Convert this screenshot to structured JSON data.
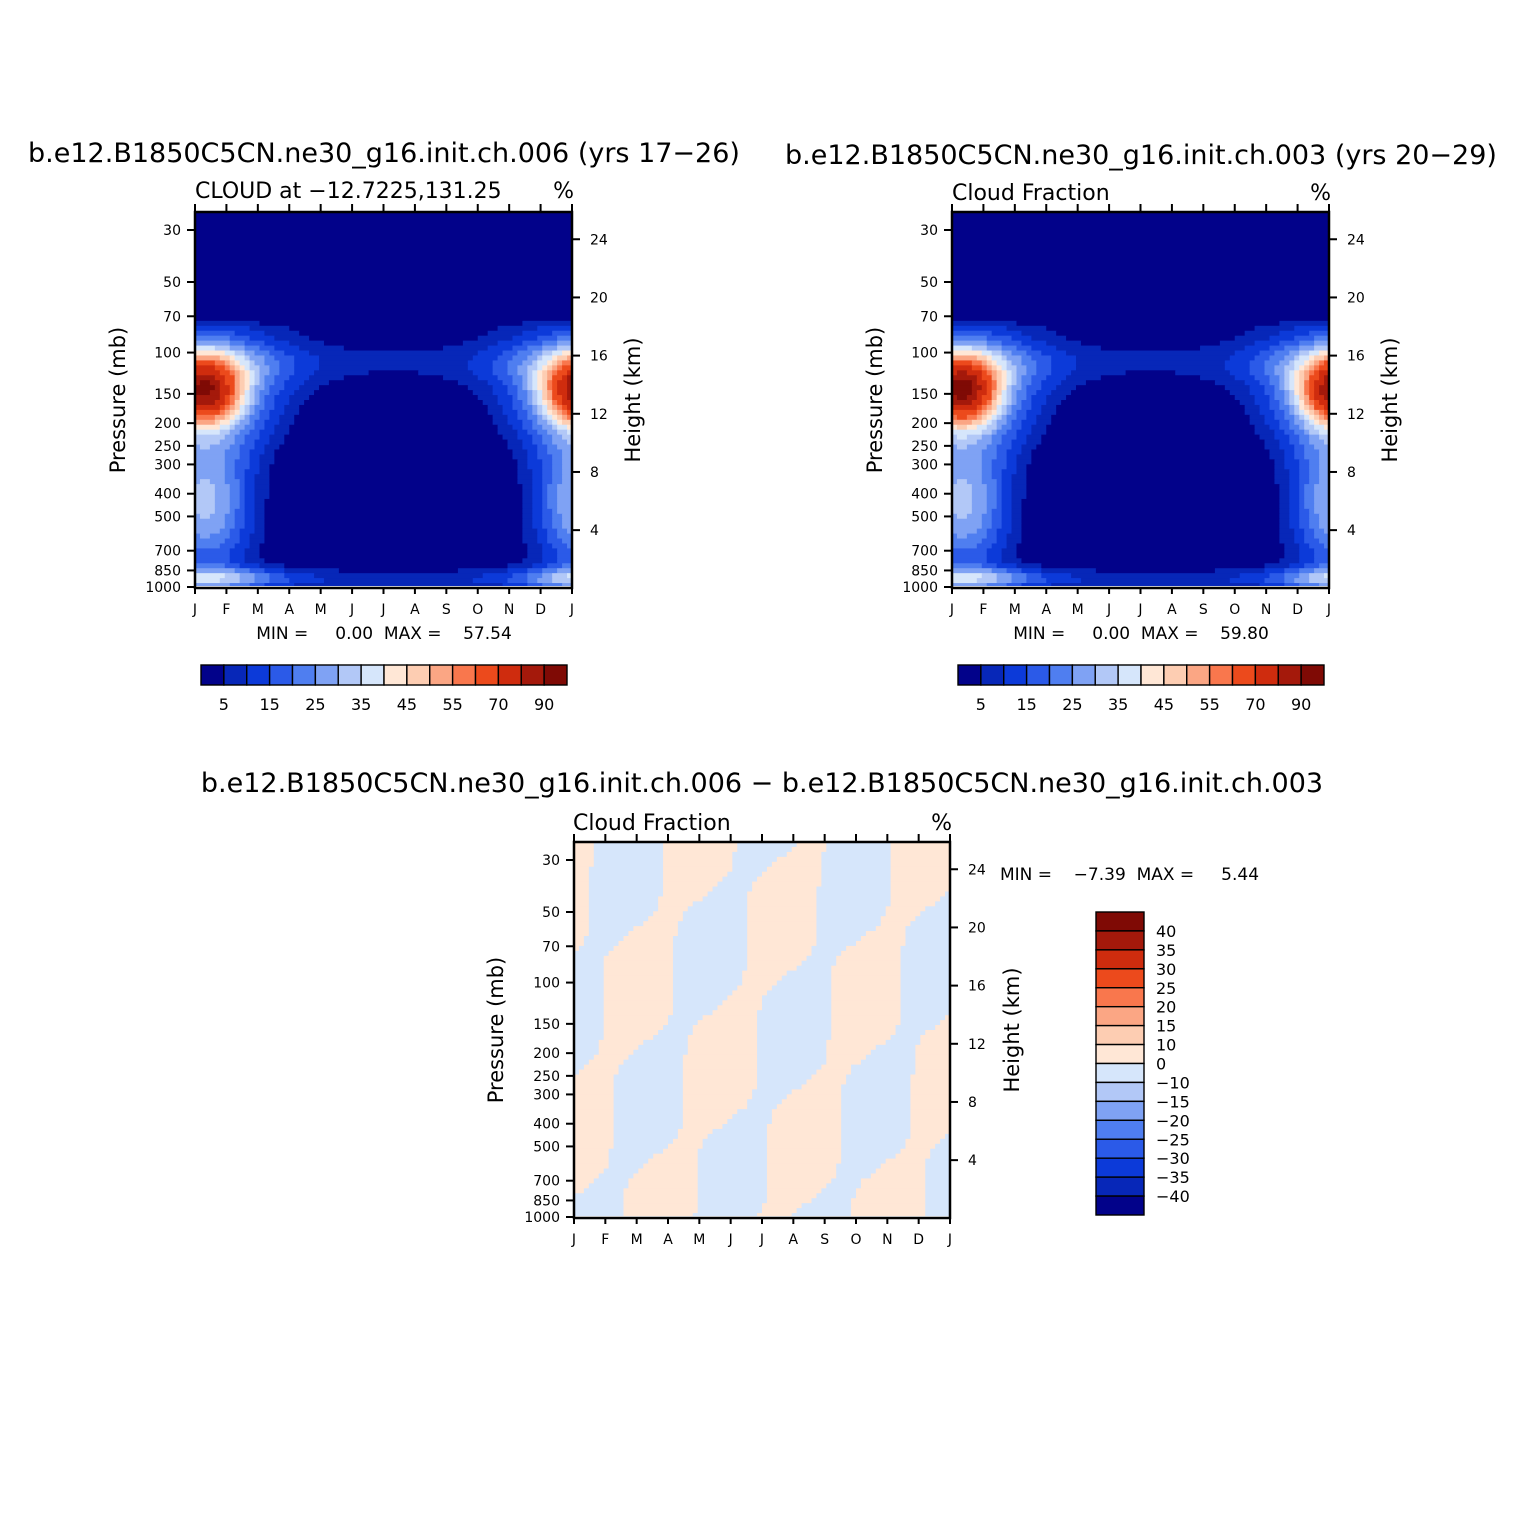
{
  "colors": {
    "seq": [
      "#02028a",
      "#0727b8",
      "#0c3ad9",
      "#2b5ae8",
      "#4f7ef0",
      "#7fa2f4",
      "#b2c8f7",
      "#d6e6fb",
      "#ffe7d6",
      "#fdcdb2",
      "#fba684",
      "#f9774d",
      "#ec4a1c",
      "#cf2c0e",
      "#a4190b",
      "#7f0a05"
    ],
    "diff_pos": "#ffe7d6",
    "diff_neg": "#d6e6fb",
    "diff_cbar": [
      "#02028a",
      "#0727b8",
      "#0c3ad9",
      "#2b5ae8",
      "#4f7ef0",
      "#7fa2f4",
      "#b2c8f7",
      "#d6e6fb",
      "#ffe7d6",
      "#fdcdb2",
      "#fba684",
      "#f9774d",
      "#ec4a1c",
      "#cf2c0e",
      "#a4190b",
      "#7f0a05"
    ]
  },
  "chart_data": [
    {
      "type": "heatmap",
      "id": "case_a",
      "title": "b.e12.B1850C5CN.ne30_g16.init.ch.006 (yrs 17−26)",
      "subtitle_left": "CLOUD at −12.7225,131.25",
      "subtitle_right": "%",
      "x": [
        "J",
        "F",
        "M",
        "A",
        "M",
        "J",
        "J",
        "A",
        "S",
        "O",
        "N",
        "D",
        "J"
      ],
      "ylabel": "Pressure (mb)",
      "yticks": [
        "30",
        "50",
        "70",
        "100",
        "150",
        "200",
        "250",
        "300",
        "400",
        "500",
        "700",
        "850",
        "1000"
      ],
      "y2label": "Height (km)",
      "y2ticks": [
        "24",
        "20",
        "16",
        "12",
        "8",
        "4"
      ],
      "stats_text": "MIN =     0.00  MAX =    57.54",
      "stats": {
        "min": 0.0,
        "max": 57.54
      },
      "colorbar_labels": [
        "5",
        "15",
        "25",
        "35",
        "45",
        "55",
        "70",
        "90"
      ],
      "zlim": [
        0,
        100
      ],
      "feature": {
        "peak": 57.54,
        "peak_month": 0.3,
        "peak_pressure": 170
      }
    },
    {
      "type": "heatmap",
      "id": "case_b",
      "title": "b.e12.B1850C5CN.ne30_g16.init.ch.003 (yrs 20−29)",
      "subtitle_left": "Cloud Fraction",
      "subtitle_right": "%",
      "x": [
        "J",
        "F",
        "M",
        "A",
        "M",
        "J",
        "J",
        "A",
        "S",
        "O",
        "N",
        "D",
        "J"
      ],
      "ylabel": "Pressure (mb)",
      "yticks": [
        "30",
        "50",
        "70",
        "100",
        "150",
        "200",
        "250",
        "300",
        "400",
        "500",
        "700",
        "850",
        "1000"
      ],
      "y2label": "Height (km)",
      "y2ticks": [
        "24",
        "20",
        "16",
        "12",
        "8",
        "4"
      ],
      "stats_text": "MIN =     0.00  MAX =    59.80",
      "stats": {
        "min": 0.0,
        "max": 59.8
      },
      "colorbar_labels": [
        "5",
        "15",
        "25",
        "35",
        "45",
        "55",
        "70",
        "90"
      ],
      "zlim": [
        0,
        100
      ],
      "feature": {
        "peak": 59.8,
        "peak_month": 0.3,
        "peak_pressure": 170
      }
    },
    {
      "type": "heatmap",
      "id": "diff",
      "title": "b.e12.B1850C5CN.ne30_g16.init.ch.006 − b.e12.B1850C5CN.ne30_g16.init.ch.003",
      "subtitle_left": "Cloud Fraction",
      "subtitle_right": "%",
      "x": [
        "J",
        "F",
        "M",
        "A",
        "M",
        "J",
        "J",
        "A",
        "S",
        "O",
        "N",
        "D",
        "J"
      ],
      "ylabel": "Pressure (mb)",
      "yticks": [
        "30",
        "50",
        "70",
        "100",
        "150",
        "200",
        "250",
        "300",
        "400",
        "500",
        "700",
        "850",
        "1000"
      ],
      "y2label": "Height (km)",
      "y2ticks": [
        "24",
        "20",
        "16",
        "12",
        "8",
        "4"
      ],
      "stats_text": "MIN =    −7.39  MAX =     5.44",
      "stats": {
        "min": -7.39,
        "max": 5.44
      },
      "colorbar_labels": [
        "40",
        "35",
        "30",
        "25",
        "20",
        "15",
        "10",
        "0",
        "−10",
        "−15",
        "−20",
        "−25",
        "−30",
        "−35",
        "−40"
      ],
      "zlim": [
        -45,
        45
      ]
    }
  ]
}
